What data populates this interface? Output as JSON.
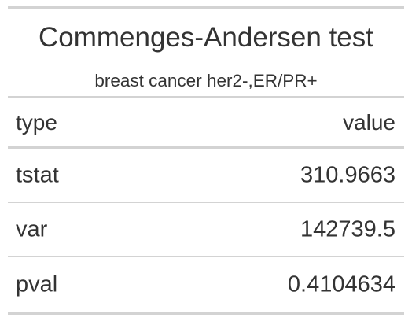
{
  "table": {
    "title": "Commenges-Andersen test",
    "subtitle": "breast cancer her2-,ER/PR+",
    "columns": [
      "type",
      "value"
    ],
    "rows": [
      {
        "type": "tstat",
        "value": "310.9663"
      },
      {
        "type": "var",
        "value": "142739.5"
      },
      {
        "type": "pval",
        "value": "0.4104634"
      }
    ]
  }
}
